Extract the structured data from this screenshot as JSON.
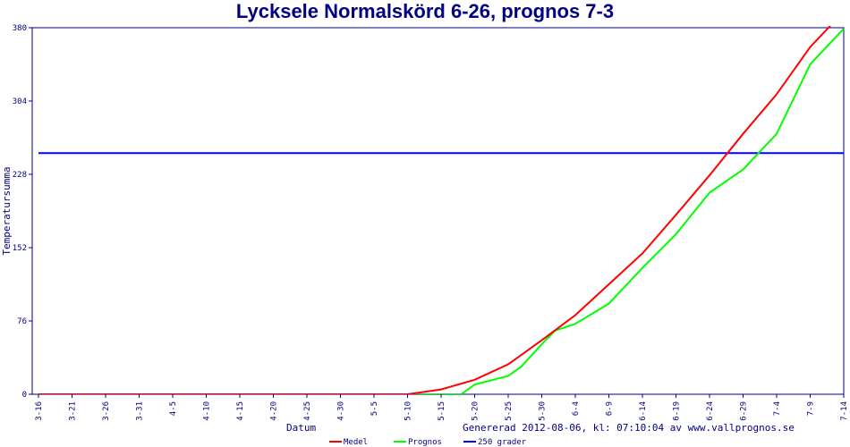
{
  "chart_data": {
    "type": "line",
    "title": "Lycksele Normalskörd 6-26, prognos 7-3",
    "xlabel": "Datum",
    "ylabel": "Temperatursumma",
    "footer": "Genererad 2012-08-06, kl: 07:10:04 av www.vallprognos.se",
    "ylim": [
      0,
      380
    ],
    "yticks": [
      "0",
      "76",
      "152",
      "228",
      "304",
      "380"
    ],
    "xticks": [
      "3-16",
      "3-21",
      "3-26",
      "3-31",
      "4-5",
      "4-10",
      "4-15",
      "4-20",
      "4-25",
      "4-30",
      "5-5",
      "5-10",
      "5-15",
      "5-20",
      "5-25",
      "5-30",
      "6-4",
      "6-9",
      "6-14",
      "6-19",
      "6-24",
      "6-29",
      "7-4",
      "7-9",
      "7-14"
    ],
    "grid": false,
    "legend_position": "bottom",
    "series": [
      {
        "name": "Medel",
        "color": "#ff0000",
        "x": [
          "3-16",
          "5-10",
          "5-15",
          "5-20",
          "5-25",
          "5-30",
          "6-4",
          "6-9",
          "6-14",
          "6-19",
          "6-24",
          "6-29",
          "7-4",
          "7-9",
          "7-12"
        ],
        "y": [
          0,
          0,
          5,
          15,
          31,
          56,
          82,
          114,
          146,
          186,
          227,
          270,
          311,
          360,
          382
        ]
      },
      {
        "name": "Prognos",
        "color": "#00ff00",
        "x": [
          "3-16",
          "5-18",
          "5-20",
          "5-25",
          "5-27",
          "5-30",
          "6-1",
          "6-4",
          "6-9",
          "6-14",
          "6-19",
          "6-24",
          "6-29",
          "7-4",
          "7-9",
          "7-14"
        ],
        "y": [
          0,
          0,
          10,
          19,
          29,
          52,
          66,
          73,
          94,
          131,
          166,
          209,
          233,
          270,
          342,
          379
        ]
      },
      {
        "name": "250 grader",
        "color": "#0000ff",
        "x": [
          "3-16",
          "7-14"
        ],
        "y": [
          250,
          250
        ]
      }
    ]
  }
}
